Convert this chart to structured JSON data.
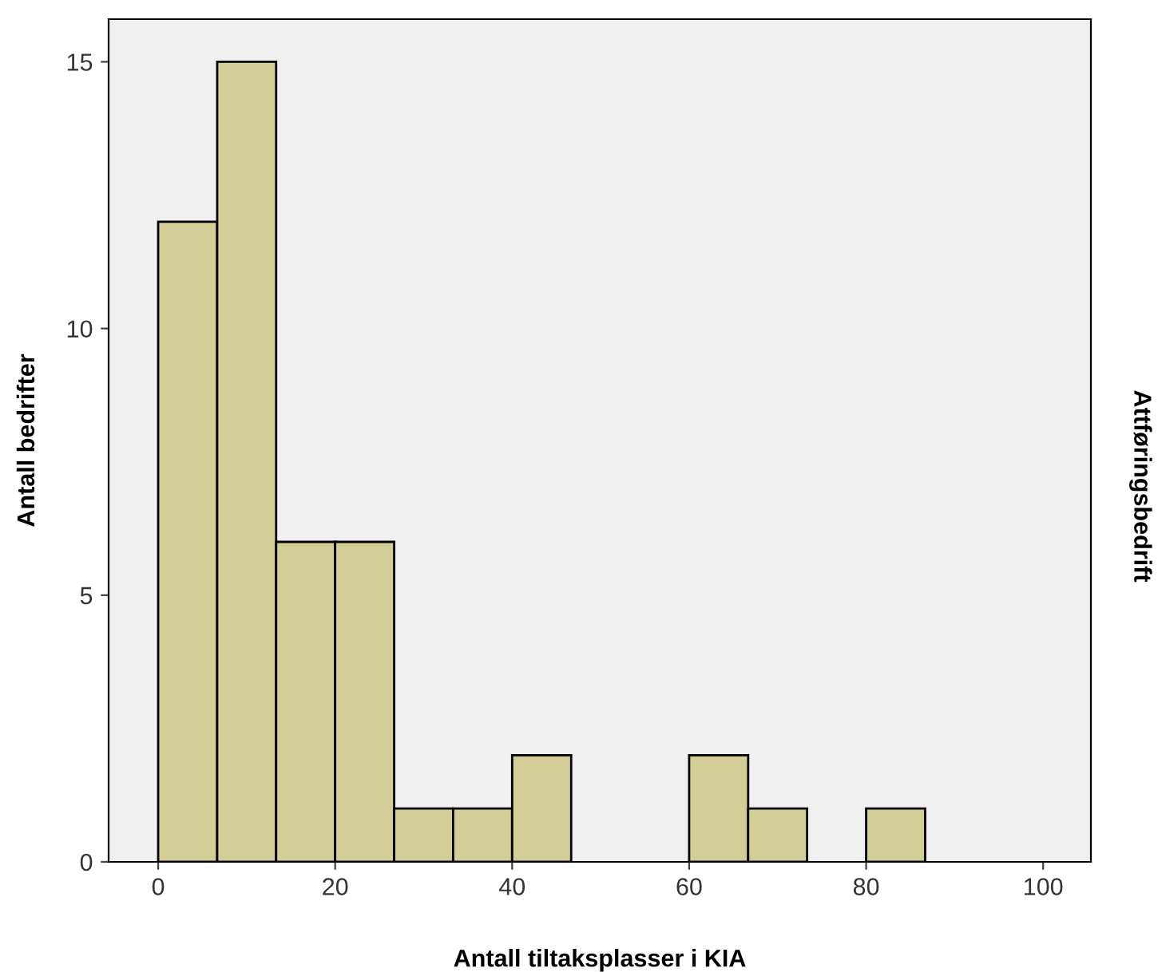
{
  "chart_data": {
    "type": "histogram",
    "xlabel": "Antall tiltaksplasser i KIA",
    "ylabel": "Antall bedrifter",
    "annotations": [
      "Attføringsbedrift"
    ],
    "bins": [
      0,
      6.67,
      13.33,
      20,
      26.67,
      33.33,
      40,
      46.67,
      53.33,
      60,
      66.67,
      73.33,
      80,
      86.67
    ],
    "values": [
      12,
      15,
      6,
      6,
      1,
      1,
      2,
      0,
      0,
      2,
      1,
      0,
      1
    ],
    "color": "#d3ce98",
    "xlim": [
      -5.6,
      105.4
    ],
    "xticks": [
      0,
      20,
      40,
      60,
      80,
      100
    ],
    "ylim": [
      0,
      15.8
    ],
    "yticks": [
      0,
      5,
      10,
      15
    ],
    "grid": false
  }
}
